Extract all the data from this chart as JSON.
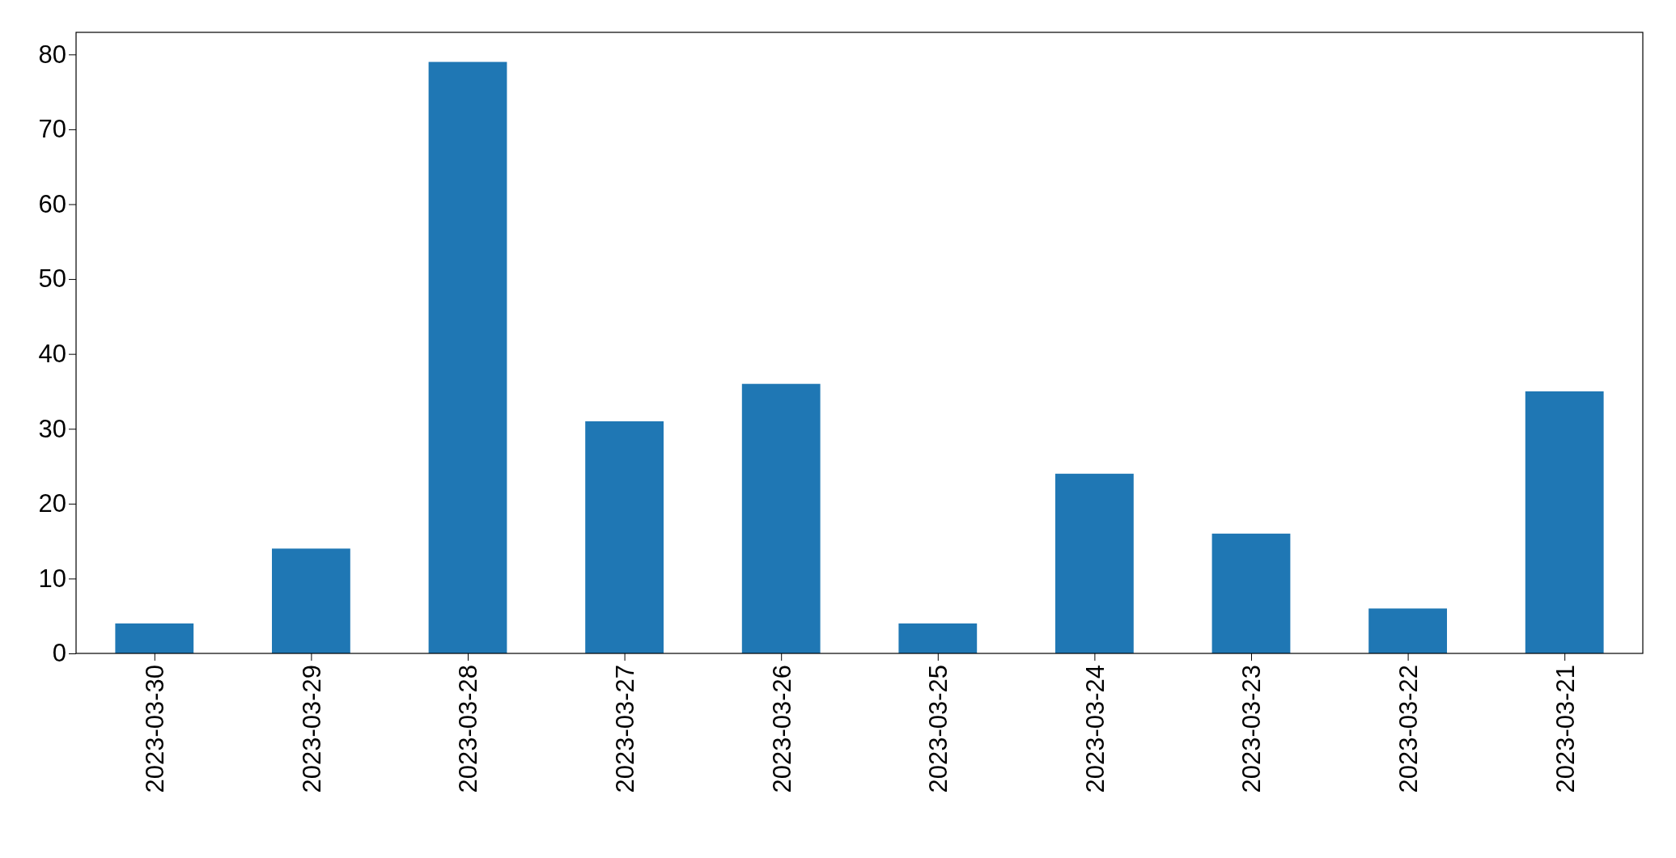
{
  "chart_data": {
    "type": "bar",
    "categories": [
      "2023-03-30",
      "2023-03-29",
      "2023-03-28",
      "2023-03-27",
      "2023-03-26",
      "2023-03-25",
      "2023-03-24",
      "2023-03-23",
      "2023-03-22",
      "2023-03-21"
    ],
    "values": [
      4,
      14,
      79,
      31,
      36,
      4,
      24,
      16,
      6,
      35
    ],
    "color": "#1f77b4",
    "ylim": [
      0,
      82.95
    ],
    "yticks": [
      0,
      10,
      20,
      30,
      40,
      50,
      60,
      70,
      80
    ],
    "grid": false
  }
}
